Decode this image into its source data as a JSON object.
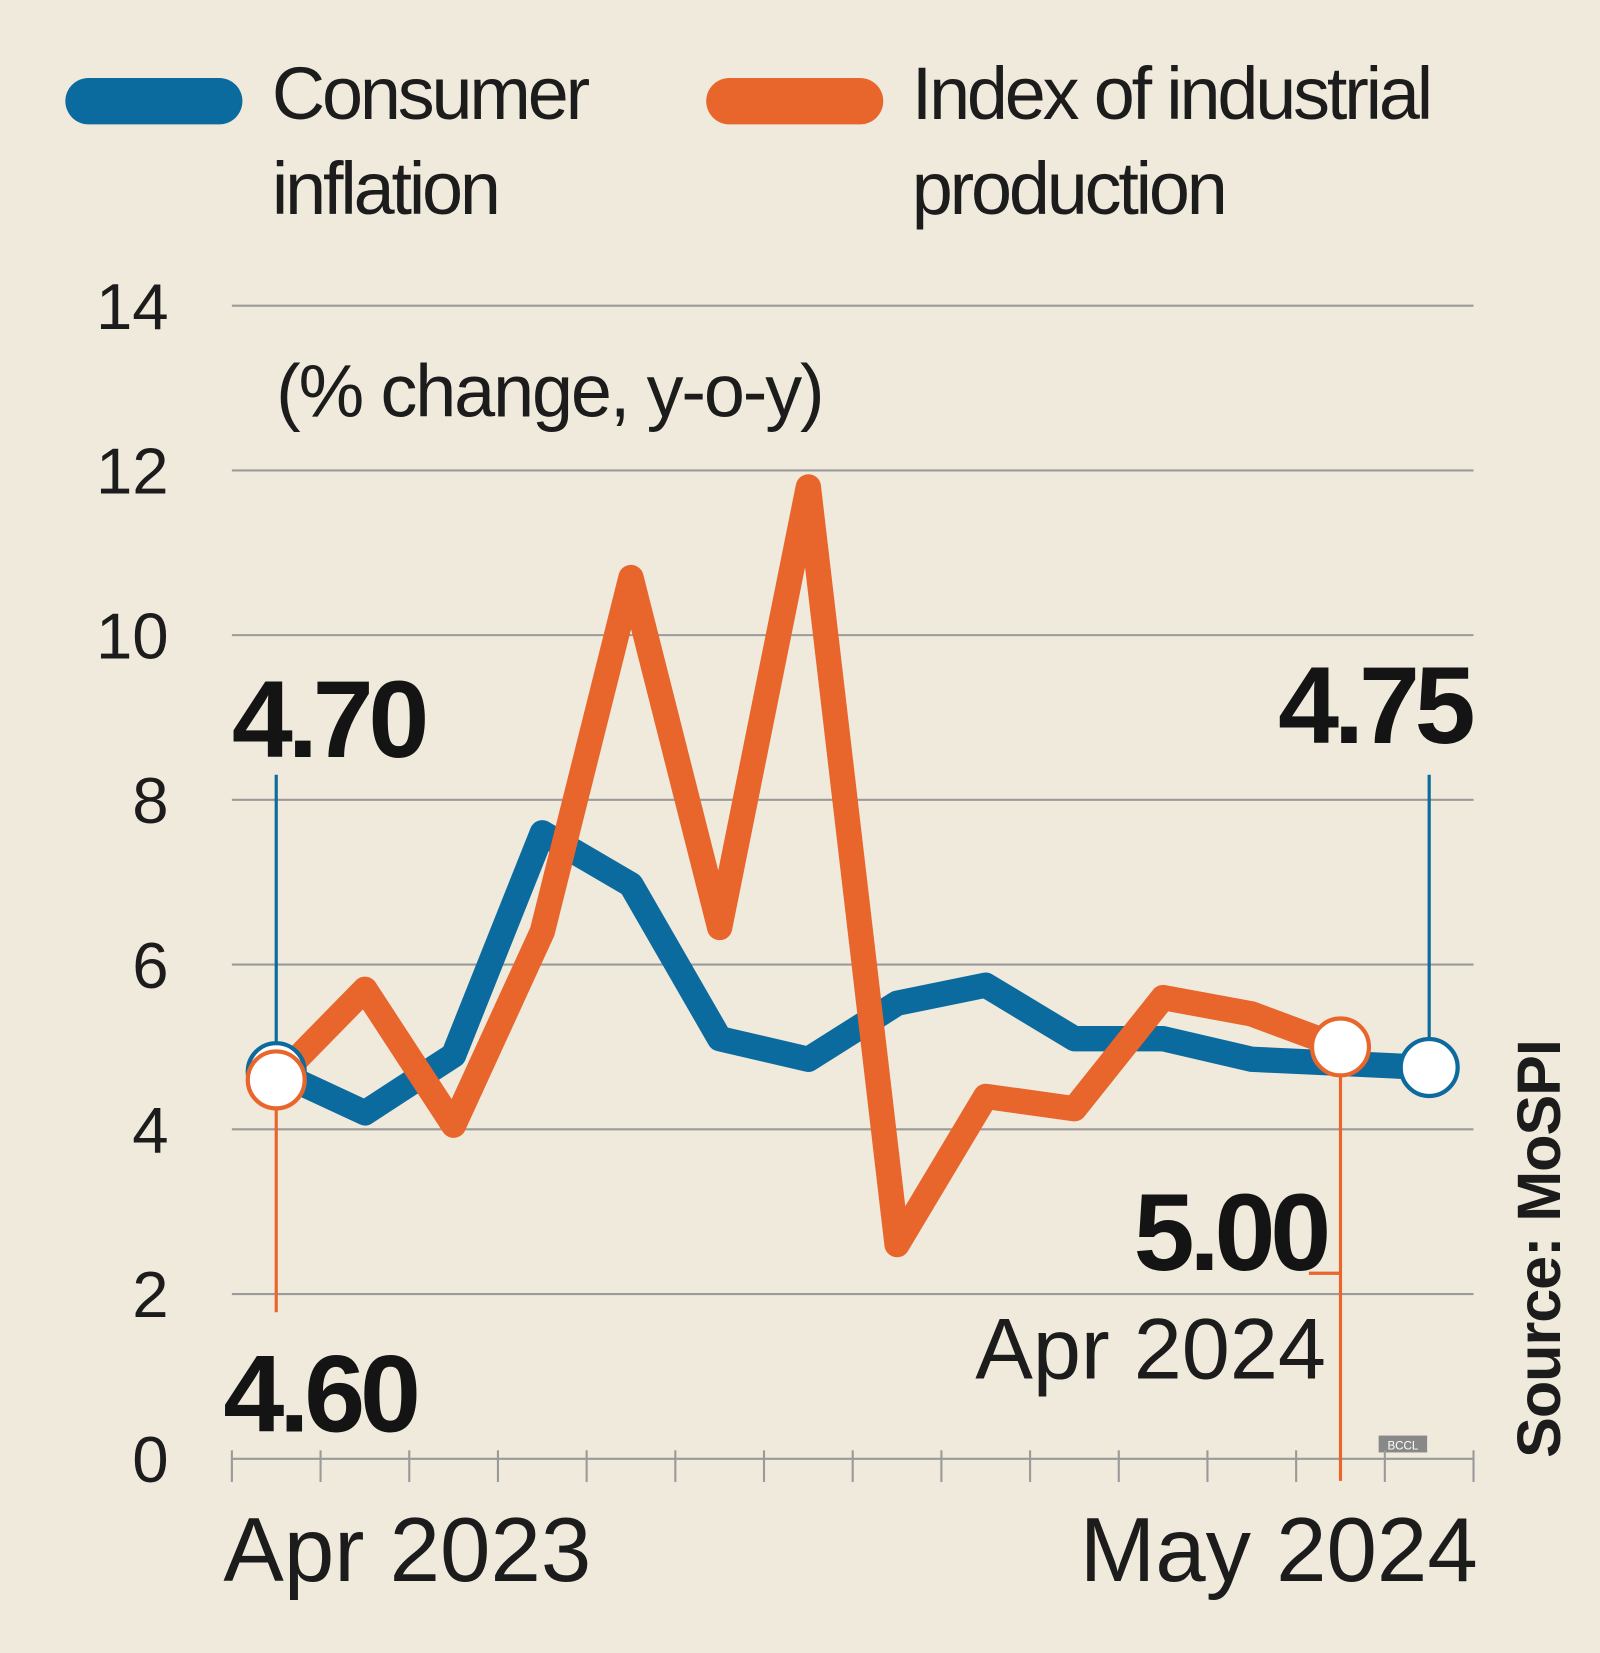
{
  "chart_data": {
    "type": "line",
    "legend": "top",
    "subtitle": "(% change, y-o-y)",
    "categories": [
      "Apr 2023",
      null,
      null,
      null,
      null,
      null,
      null,
      null,
      null,
      null,
      null,
      null,
      null,
      "May 2024"
    ],
    "series": [
      {
        "name": "Consumer inflation",
        "color": "#0b6a9e",
        "values": [
          4.7,
          4.2,
          4.9,
          7.6,
          6.97,
          5.1,
          4.85,
          5.53,
          5.75,
          5.1,
          5.1,
          4.85,
          4.8,
          4.75
        ],
        "value_labels": [
          "4.70",
          null,
          null,
          null,
          null,
          null,
          null,
          null,
          null,
          null,
          null,
          null,
          null,
          "4.75"
        ]
      },
      {
        "name": "Index of industrial production",
        "color": "#e8652b",
        "values": [
          4.6,
          5.7,
          4.05,
          6.4,
          10.7,
          6.45,
          11.8,
          2.6,
          4.4,
          4.25,
          5.6,
          5.4,
          5.0,
          null
        ],
        "value_labels": [
          "4.60",
          null,
          null,
          null,
          null,
          null,
          null,
          null,
          null,
          null,
          null,
          null,
          "5.00",
          null
        ]
      }
    ],
    "annotations": [
      "Apr 2024"
    ],
    "ylim": [
      0,
      14
    ],
    "yticks": [
      0,
      2,
      4,
      6,
      8,
      10,
      12,
      14
    ],
    "grid": true,
    "source": "Source: MoSPI",
    "credit": "BCCL"
  }
}
